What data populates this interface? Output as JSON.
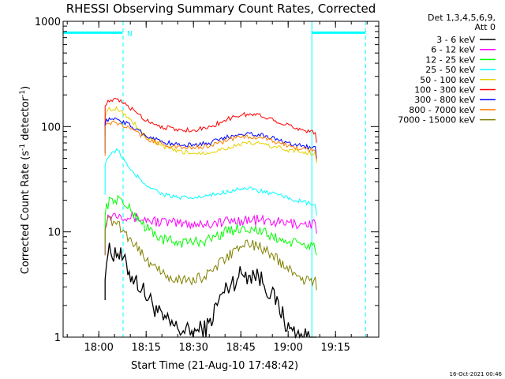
{
  "chart_data": {
    "type": "line",
    "title": "RHESSI Observing Summary Count Rates, Corrected",
    "xlabel": "Start Time (21-Aug-10 17:48:42)",
    "ylabel": "Corrected Count Rate (s⁻¹ detector⁻¹)",
    "ylabel_main": "Corrected Count Rate (s",
    "ylabel_sup1": "-1",
    "ylabel_mid": " detector",
    "ylabel_sup2": "-1",
    "ylabel_end": ")",
    "y_scale": "log",
    "ylim": [
      1,
      1000
    ],
    "xlim": [
      "17:48:42",
      "19:28:42"
    ],
    "x_ticks": [
      "18:00",
      "18:15",
      "18:30",
      "18:45",
      "19:00",
      "19:15"
    ],
    "y_ticks": [
      "1",
      "10",
      "100",
      "1000"
    ],
    "legend_position": "top-right",
    "legend_header": [
      "Det 1,3,4,5,6,9,",
      "Att 0"
    ],
    "footer_timestamp": "16-Oct-2021 00:46",
    "annotations": [
      {
        "text": "N",
        "x": "18:07:42"
      }
    ],
    "night_intervals": [
      {
        "from": "17:48:42",
        "to": "18:07:30",
        "value": 780
      },
      {
        "from": "19:07:30",
        "to": "19:24:30",
        "value": 780
      }
    ],
    "marker_lines": {
      "solid": [
        "17:48:42",
        "19:07:30"
      ],
      "dashed": [
        "18:07:42",
        "19:24:30"
      ]
    },
    "colors": {
      "axes": "#000000",
      "night_bar": "#00ffff"
    },
    "series": [
      {
        "name": "3 - 6 keV",
        "color": "#000000",
        "x": [
          "18:02",
          "18:03",
          "18:06",
          "18:10",
          "18:15",
          "18:20",
          "18:25",
          "18:30",
          "18:35",
          "18:40",
          "18:45",
          "18:50",
          "18:55",
          "19:00",
          "19:05",
          "19:09"
        ],
        "values": [
          4.5,
          6.5,
          6.5,
          4.0,
          2.5,
          1.5,
          1.2,
          1.1,
          1.3,
          2.8,
          4.0,
          4.0,
          2.5,
          1.2,
          1.0,
          1.0
        ]
      },
      {
        "name": "6 - 12 keV",
        "color": "#ff00ff",
        "x": [
          "18:02",
          "18:03",
          "18:06",
          "18:10",
          "18:15",
          "18:20",
          "18:25",
          "18:30",
          "18:35",
          "18:40",
          "18:45",
          "18:50",
          "18:55",
          "19:00",
          "19:05",
          "19:09"
        ],
        "values": [
          12,
          14,
          15,
          14,
          13,
          12.5,
          12,
          12,
          12,
          12.5,
          13,
          13,
          12.5,
          12,
          12,
          12
        ]
      },
      {
        "name": "12 - 25 keV",
        "color": "#00ff00",
        "x": [
          "18:02",
          "18:03",
          "18:06",
          "18:10",
          "18:15",
          "18:20",
          "18:25",
          "18:30",
          "18:35",
          "18:40",
          "18:45",
          "18:50",
          "18:55",
          "19:00",
          "19:05",
          "19:09"
        ],
        "values": [
          16,
          19,
          21,
          16,
          11,
          8.5,
          8,
          8,
          8.5,
          10,
          11,
          10.5,
          9,
          8,
          7.5,
          7.5
        ]
      },
      {
        "name": "25 - 50 keV",
        "color": "#00ffff",
        "x": [
          "18:02",
          "18:03",
          "18:06",
          "18:08",
          "18:10",
          "18:15",
          "18:20",
          "18:25",
          "18:30",
          "18:35",
          "18:40",
          "18:45",
          "18:50",
          "18:55",
          "19:00",
          "19:05",
          "19:09"
        ],
        "values": [
          45,
          52,
          60,
          48,
          38,
          28,
          23,
          21,
          21,
          22,
          24,
          26,
          25,
          23,
          21,
          19,
          18
        ]
      },
      {
        "name": "50 - 100 keV",
        "color": "#e6d200",
        "x": [
          "18:02",
          "18:03",
          "18:06",
          "18:10",
          "18:15",
          "18:20",
          "18:25",
          "18:30",
          "18:35",
          "18:40",
          "18:45",
          "18:50",
          "18:55",
          "19:00",
          "19:05",
          "19:09"
        ],
        "values": [
          130,
          145,
          150,
          115,
          80,
          65,
          58,
          56,
          57,
          62,
          68,
          70,
          65,
          60,
          57,
          56
        ]
      },
      {
        "name": "100 - 300 keV",
        "color": "#ff0000",
        "x": [
          "18:02",
          "18:03",
          "18:06",
          "18:10",
          "18:15",
          "18:20",
          "18:25",
          "18:30",
          "18:35",
          "18:40",
          "18:45",
          "18:50",
          "18:55",
          "19:00",
          "19:05",
          "19:09"
        ],
        "values": [
          165,
          172,
          180,
          150,
          115,
          100,
          93,
          93,
          98,
          115,
          130,
          130,
          118,
          102,
          93,
          88
        ]
      },
      {
        "name": "300 - 800 keV",
        "color": "#0000ff",
        "x": [
          "18:02",
          "18:03",
          "18:06",
          "18:10",
          "18:15",
          "18:20",
          "18:25",
          "18:30",
          "18:35",
          "18:40",
          "18:45",
          "18:50",
          "18:55",
          "19:00",
          "19:05",
          "19:09"
        ],
        "values": [
          112,
          116,
          118,
          102,
          82,
          72,
          67,
          67,
          70,
          78,
          86,
          85,
          78,
          70,
          65,
          62
        ]
      },
      {
        "name": "800 - 7000 keV",
        "color": "#ff8000",
        "x": [
          "18:02",
          "18:03",
          "18:06",
          "18:10",
          "18:15",
          "18:20",
          "18:25",
          "18:30",
          "18:35",
          "18:40",
          "18:45",
          "18:50",
          "18:55",
          "19:00",
          "19:05",
          "19:09"
        ],
        "values": [
          105,
          108,
          108,
          95,
          77,
          68,
          63,
          63,
          66,
          73,
          80,
          80,
          73,
          66,
          61,
          59
        ]
      },
      {
        "name": "7000 - 15000 keV",
        "color": "#808000",
        "x": [
          "18:02",
          "18:03",
          "18:06",
          "18:10",
          "18:15",
          "18:20",
          "18:25",
          "18:30",
          "18:35",
          "18:40",
          "18:45",
          "18:50",
          "18:55",
          "19:00",
          "19:05",
          "19:09"
        ],
        "values": [
          12,
          13,
          12,
          8.5,
          5.5,
          4,
          3.5,
          3.5,
          4,
          5.5,
          7.5,
          7.5,
          6,
          4.5,
          3.5,
          3.5
        ]
      }
    ]
  }
}
